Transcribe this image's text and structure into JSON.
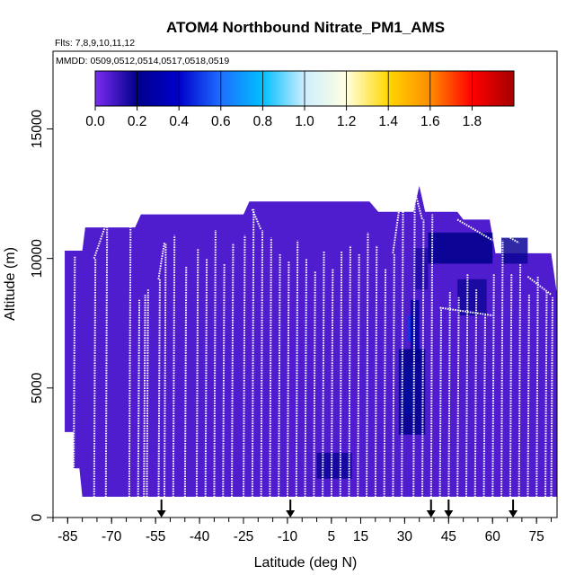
{
  "chart_data": {
    "type": "heatmap",
    "title": "ATOM4 Northbound Nitrate_PM1_AMS",
    "flights_label": "Flts: 7,8,9,10,11,12",
    "dates_label": "MMDD: 0509,0512,0514,0517,0518,0519",
    "xlabel": "Latitude (deg N)",
    "ylabel": "Altitude (m)",
    "xlim": [
      -90,
      82
    ],
    "ylim": [
      0,
      18000
    ],
    "x_ticks": [
      -85,
      -70,
      -55,
      -40,
      -25,
      -10,
      5,
      15,
      30,
      45,
      60,
      75
    ],
    "x_ticklabels": [
      "-85",
      "-70",
      "-55",
      "-40",
      "-25",
      "-10",
      "5",
      "15",
      "30",
      "45",
      "60",
      "75"
    ],
    "x_minor_step": 5,
    "y_ticks": [
      0,
      5000,
      10000,
      15000
    ],
    "y_ticklabels": [
      "0",
      "5000",
      "10000",
      "15000"
    ],
    "colorbar": {
      "range": [
        0.0,
        2.0
      ],
      "ticks": [
        0.0,
        0.2,
        0.4,
        0.6,
        0.8,
        1.0,
        1.2,
        1.4,
        1.6,
        1.8
      ],
      "ticklabels": [
        "0.0",
        "0.2",
        "0.4",
        "0.6",
        "0.8",
        "1.0",
        "1.2",
        "1.4",
        "1.6",
        "1.8"
      ],
      "colors": [
        "#7b2cf2",
        "#00008b",
        "#0000cd",
        "#1e6fff",
        "#00bfff",
        "#cfeeff",
        "#ffffe0",
        "#ffd700",
        "#ff8c00",
        "#ff0000",
        "#a50000"
      ]
    },
    "background_value": 0.07,
    "ceiling_profile": {
      "lat": [
        -86,
        -80,
        -79,
        -62,
        -60,
        -25,
        -23,
        18,
        21,
        33,
        35,
        37,
        48,
        50,
        59,
        61,
        80,
        82
      ],
      "alt": [
        10300,
        10300,
        11200,
        11200,
        11700,
        11700,
        12200,
        12200,
        11800,
        11800,
        12800,
        11800,
        11800,
        11500,
        11500,
        10200,
        10200,
        8600
      ]
    },
    "floor_profile": {
      "lat": [
        -86,
        -83,
        -83,
        -81,
        -80,
        82
      ],
      "alt": [
        3300,
        3300,
        1900,
        1900,
        800,
        800
      ]
    },
    "enhancements": [
      {
        "lat": [
          30,
          33
        ],
        "alt": [
          4000,
          5800
        ],
        "value": 0.55
      },
      {
        "lat": [
          31,
          34
        ],
        "alt": [
          6800,
          7800
        ],
        "value": 0.5
      },
      {
        "lat": [
          32,
          35
        ],
        "alt": [
          6000,
          8400
        ],
        "value": 0.25
      },
      {
        "lat": [
          28,
          37
        ],
        "alt": [
          3200,
          6500
        ],
        "value": 0.2
      },
      {
        "lat": [
          0,
          12
        ],
        "alt": [
          1500,
          2500
        ],
        "value": 0.18
      },
      {
        "lat": [
          38,
          60
        ],
        "alt": [
          9800,
          11000
        ],
        "value": 0.2
      },
      {
        "lat": [
          48,
          58
        ],
        "alt": [
          7800,
          9200
        ],
        "value": 0.17
      },
      {
        "lat": [
          63,
          72
        ],
        "alt": [
          9800,
          10800
        ],
        "value": 0.18
      },
      {
        "lat": [
          33,
          38
        ],
        "alt": [
          8800,
          10400
        ],
        "value": 0.15
      }
    ],
    "profile_latitudes": [
      -83,
      -76,
      -72,
      -64,
      -61,
      -59,
      -58,
      -54,
      -52,
      -49,
      -45,
      -41,
      -38,
      -35,
      -32,
      -29,
      -25,
      -22,
      -19,
      -16,
      -13,
      -10,
      -7,
      -4,
      -1,
      2,
      5,
      8,
      11,
      14,
      17,
      20,
      23,
      26,
      29,
      33,
      36,
      39,
      42,
      45,
      48,
      51,
      54,
      57,
      60,
      63,
      66,
      69,
      72,
      75,
      78,
      80
    ],
    "profile_tops": [
      10100,
      10000,
      11300,
      11300,
      8400,
      8600,
      8800,
      9200,
      10600,
      10900,
      9700,
      10400,
      10000,
      11100,
      9800,
      10600,
      10900,
      11900,
      11100,
      10800,
      10200,
      9900,
      10700,
      10000,
      9500,
      10300,
      9600,
      10300,
      10500,
      10200,
      11000,
      10500,
      9600,
      10200,
      12600,
      12800,
      11500,
      11700,
      8100,
      8700,
      8500,
      9400,
      8800,
      7800,
      9400,
      10700,
      9400,
      9800,
      8600,
      9300,
      8700,
      8500
    ],
    "transit_segments": [
      {
        "lat": [
          -76,
          -72
        ],
        "alt": [
          10000,
          11300
        ]
      },
      {
        "lat": [
          -72,
          -64
        ],
        "alt": [
          11300,
          11500
        ]
      },
      {
        "lat": [
          -54,
          -52
        ],
        "alt": [
          9200,
          10600
        ]
      },
      {
        "lat": [
          -22,
          -19
        ],
        "alt": [
          11900,
          11100
        ]
      },
      {
        "lat": [
          26,
          29
        ],
        "alt": [
          10200,
          12600
        ]
      },
      {
        "lat": [
          33,
          36
        ],
        "alt": [
          12800,
          11500
        ]
      },
      {
        "lat": [
          42,
          60
        ],
        "alt": [
          8100,
          7800
        ]
      },
      {
        "lat": [
          48,
          60
        ],
        "alt": [
          11500,
          10700
        ]
      },
      {
        "lat": [
          63,
          69
        ],
        "alt": [
          11000,
          10600
        ]
      },
      {
        "lat": [
          72,
          80
        ],
        "alt": [
          9300,
          8600
        ]
      }
    ],
    "profile_bottom_alt": 300,
    "arrow_latitudes": [
      -53,
      -9,
      39,
      45,
      67
    ]
  }
}
